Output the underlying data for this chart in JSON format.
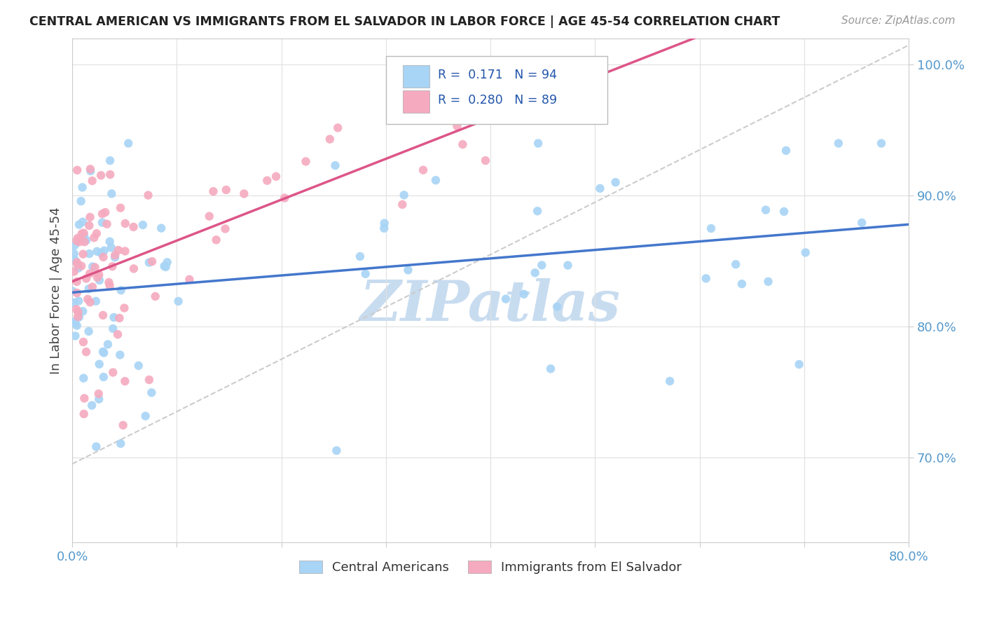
{
  "title": "CENTRAL AMERICAN VS IMMIGRANTS FROM EL SALVADOR IN LABOR FORCE | AGE 45-54 CORRELATION CHART",
  "source": "Source: ZipAtlas.com",
  "ylabel": "In Labor Force | Age 45-54",
  "xlim": [
    0.0,
    0.8
  ],
  "ylim": [
    0.635,
    1.02
  ],
  "yticks": [
    0.7,
    0.8,
    0.9,
    1.0
  ],
  "yticklabels": [
    "70.0%",
    "80.0%",
    "90.0%",
    "100.0%"
  ],
  "R_blue": 0.171,
  "N_blue": 94,
  "R_pink": 0.28,
  "N_pink": 89,
  "blue_color": "#A8D4F5",
  "pink_color": "#F5AABF",
  "trend_blue": "#4477CC",
  "trend_pink": "#DD5588",
  "watermark": "ZIPatlas",
  "watermark_color": "#C8DCF0",
  "grid_color": "#E0E0E0",
  "spine_color": "#CCCCCC",
  "tick_color": "#5599CC",
  "title_color": "#222222",
  "source_color": "#999999",
  "legend_color": "#2255AA"
}
